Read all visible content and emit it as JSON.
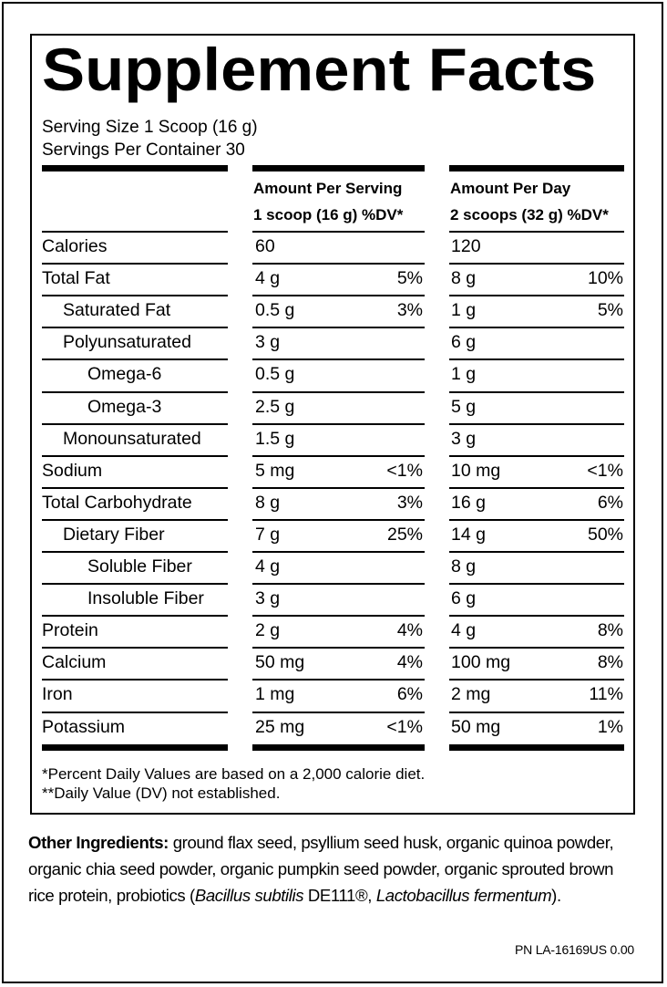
{
  "label": {
    "title": "Supplement Facts",
    "serving_size": "Serving Size 1 Scoop (16 g)",
    "servings_per_container": "Servings Per Container 30",
    "col1_header_line1": "Amount Per Serving",
    "col1_header_line2": "1 scoop (16 g) %DV*",
    "col2_header_line1": "Amount Per Day",
    "col2_header_line2": "2 scoops (32 g) %DV*",
    "rows": [
      {
        "name": "Calories",
        "indent": 0,
        "serv_amt": "60",
        "serv_dv": "",
        "day_amt": "120",
        "day_dv": ""
      },
      {
        "name": "Total Fat",
        "indent": 0,
        "serv_amt": "4 g",
        "serv_dv": "5%",
        "day_amt": "8 g",
        "day_dv": "10%"
      },
      {
        "name": "Saturated Fat",
        "indent": 1,
        "serv_amt": "0.5 g",
        "serv_dv": "3%",
        "day_amt": "1 g",
        "day_dv": "5%"
      },
      {
        "name": "Polyunsaturated",
        "indent": 1,
        "serv_amt": "3 g",
        "serv_dv": "",
        "day_amt": "6 g",
        "day_dv": ""
      },
      {
        "name": "Omega-6",
        "indent": 2,
        "serv_amt": "0.5 g",
        "serv_dv": "",
        "day_amt": "1 g",
        "day_dv": ""
      },
      {
        "name": "Omega-3",
        "indent": 2,
        "serv_amt": "2.5 g",
        "serv_dv": "",
        "day_amt": "5 g",
        "day_dv": ""
      },
      {
        "name": "Monounsaturated",
        "indent": 1,
        "serv_amt": "1.5 g",
        "serv_dv": "",
        "day_amt": "3 g",
        "day_dv": ""
      },
      {
        "name": "Sodium",
        "indent": 0,
        "serv_amt": "5 mg",
        "serv_dv": "<1%",
        "day_amt": "10 mg",
        "day_dv": "<1%"
      },
      {
        "name": "Total Carbohydrate",
        "indent": 0,
        "serv_amt": "8 g",
        "serv_dv": "3%",
        "day_amt": "16 g",
        "day_dv": "6%"
      },
      {
        "name": "Dietary Fiber",
        "indent": 1,
        "serv_amt": "7 g",
        "serv_dv": "25%",
        "day_amt": "14 g",
        "day_dv": "50%"
      },
      {
        "name": "Soluble Fiber",
        "indent": 2,
        "serv_amt": "4 g",
        "serv_dv": "",
        "day_amt": "8 g",
        "day_dv": ""
      },
      {
        "name": "Insoluble Fiber",
        "indent": 2,
        "serv_amt": "3 g",
        "serv_dv": "",
        "day_amt": "6 g",
        "day_dv": ""
      },
      {
        "name": "Protein",
        "indent": 0,
        "serv_amt": "2 g",
        "serv_dv": "4%",
        "day_amt": "4 g",
        "day_dv": "8%"
      },
      {
        "name": "Calcium",
        "indent": 0,
        "serv_amt": "50 mg",
        "serv_dv": "4%",
        "day_amt": "100 mg",
        "day_dv": "8%"
      },
      {
        "name": "Iron",
        "indent": 0,
        "serv_amt": "1 mg",
        "serv_dv": "6%",
        "day_amt": "2 mg",
        "day_dv": "11%"
      },
      {
        "name": "Potassium",
        "indent": 0,
        "serv_amt": "25 mg",
        "serv_dv": "<1%",
        "day_amt": "50 mg",
        "day_dv": "1%"
      }
    ],
    "footnote1": "*Percent Daily Values are based on a 2,000 calorie diet.",
    "footnote2": "**Daily Value (DV) not established."
  },
  "other_ingredients": {
    "label": "Other Ingredients:",
    "text_before": " ground flax seed, psyllium seed husk, organic quinoa powder, organic chia seed powder, organic pumpkin seed powder, organic sprouted brown rice protein, probiotics (",
    "italic1": "Bacillus subtilis",
    "text_mid": " DE111®, ",
    "italic2": "Lactobacillus fermentum",
    "text_after": ")."
  },
  "part_number": "PN LA-16169US  0.00"
}
